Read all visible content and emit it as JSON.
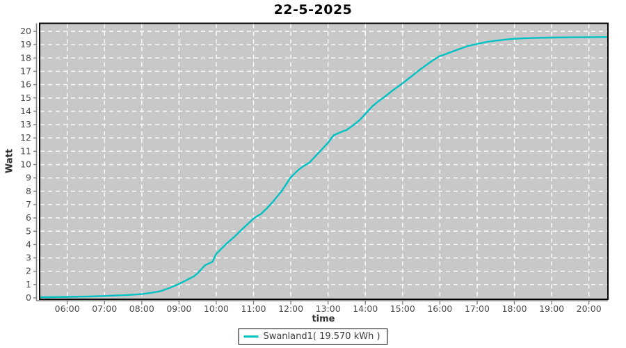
{
  "chart_data": {
    "type": "line",
    "title": "22-5-2025",
    "xlabel": "time",
    "ylabel": "Watt",
    "xlim": [
      5.26,
      20.51
    ],
    "ylim": [
      0,
      20
    ],
    "grid": true,
    "legend_position": "bottom-center",
    "x_ticks": [
      {
        "value": 6,
        "label": "06:00"
      },
      {
        "value": 7,
        "label": "07:00"
      },
      {
        "value": 8,
        "label": "08:00"
      },
      {
        "value": 9,
        "label": "09:00"
      },
      {
        "value": 10,
        "label": "10:00"
      },
      {
        "value": 11,
        "label": "11:00"
      },
      {
        "value": 12,
        "label": "12:00"
      },
      {
        "value": 13,
        "label": "13:00"
      },
      {
        "value": 14,
        "label": "14:00"
      },
      {
        "value": 15,
        "label": "15:00"
      },
      {
        "value": 16,
        "label": "16:00"
      },
      {
        "value": 17,
        "label": "17:00"
      },
      {
        "value": 18,
        "label": "18:00"
      },
      {
        "value": 19,
        "label": "19:00"
      },
      {
        "value": 20,
        "label": "20:00"
      }
    ],
    "y_ticks": [
      {
        "value": 0,
        "label": "0"
      },
      {
        "value": 1,
        "label": "1"
      },
      {
        "value": 2,
        "label": "2"
      },
      {
        "value": 3,
        "label": "3"
      },
      {
        "value": 4,
        "label": "4"
      },
      {
        "value": 5,
        "label": "5"
      },
      {
        "value": 6,
        "label": "6"
      },
      {
        "value": 7,
        "label": "7"
      },
      {
        "value": 8,
        "label": "8"
      },
      {
        "value": 9,
        "label": "9"
      },
      {
        "value": 10,
        "label": "10"
      },
      {
        "value": 11,
        "label": "11"
      },
      {
        "value": 12,
        "label": "12"
      },
      {
        "value": 13,
        "label": "13"
      },
      {
        "value": 14,
        "label": "14"
      },
      {
        "value": 15,
        "label": "15"
      },
      {
        "value": 16,
        "label": "16"
      },
      {
        "value": 17,
        "label": "17"
      },
      {
        "value": 18,
        "label": "18"
      },
      {
        "value": 19,
        "label": "19"
      },
      {
        "value": 20,
        "label": "20"
      }
    ],
    "colors": {
      "plot_background": "#c8c8c8",
      "gridline": "#ffffff",
      "plot_border": "#000000",
      "axis_line": "#808080",
      "tick_mark": "#808080",
      "tick_label": "#4a4a4a",
      "series_line": "#00c1c4"
    },
    "series": [
      {
        "name": "Swanland1( 19.570 kWh )",
        "total_kwh": "19.570",
        "color": "#00c1c4",
        "points": [
          [
            5.26,
            0.05
          ],
          [
            5.5,
            0.06
          ],
          [
            6.0,
            0.08
          ],
          [
            6.5,
            0.1
          ],
          [
            7.0,
            0.14
          ],
          [
            7.25,
            0.17
          ],
          [
            7.5,
            0.2
          ],
          [
            7.75,
            0.24
          ],
          [
            8.0,
            0.28
          ],
          [
            8.25,
            0.38
          ],
          [
            8.5,
            0.5
          ],
          [
            8.75,
            0.75
          ],
          [
            9.0,
            1.05
          ],
          [
            9.25,
            1.4
          ],
          [
            9.4,
            1.62
          ],
          [
            9.5,
            1.85
          ],
          [
            9.6,
            2.15
          ],
          [
            9.7,
            2.45
          ],
          [
            9.8,
            2.58
          ],
          [
            9.9,
            2.72
          ],
          [
            10.0,
            3.3
          ],
          [
            10.25,
            4.0
          ],
          [
            10.5,
            4.62
          ],
          [
            10.75,
            5.3
          ],
          [
            11.0,
            5.95
          ],
          [
            11.08,
            6.1
          ],
          [
            11.2,
            6.3
          ],
          [
            11.35,
            6.7
          ],
          [
            11.5,
            7.15
          ],
          [
            11.75,
            8.0
          ],
          [
            12.0,
            9.05
          ],
          [
            12.2,
            9.6
          ],
          [
            12.35,
            9.9
          ],
          [
            12.5,
            10.15
          ],
          [
            12.75,
            10.9
          ],
          [
            13.0,
            11.65
          ],
          [
            13.15,
            12.2
          ],
          [
            13.35,
            12.45
          ],
          [
            13.5,
            12.6
          ],
          [
            13.7,
            13.0
          ],
          [
            13.85,
            13.35
          ],
          [
            14.0,
            13.8
          ],
          [
            14.2,
            14.4
          ],
          [
            14.35,
            14.75
          ],
          [
            14.5,
            15.05
          ],
          [
            14.75,
            15.6
          ],
          [
            15.0,
            16.1
          ],
          [
            15.25,
            16.65
          ],
          [
            15.5,
            17.2
          ],
          [
            15.75,
            17.7
          ],
          [
            16.0,
            18.15
          ],
          [
            16.12,
            18.25
          ],
          [
            16.3,
            18.45
          ],
          [
            16.5,
            18.65
          ],
          [
            16.75,
            18.9
          ],
          [
            17.0,
            19.05
          ],
          [
            17.25,
            19.2
          ],
          [
            17.5,
            19.3
          ],
          [
            17.75,
            19.38
          ],
          [
            18.0,
            19.44
          ],
          [
            18.25,
            19.48
          ],
          [
            18.5,
            19.5
          ],
          [
            19.0,
            19.53
          ],
          [
            19.5,
            19.55
          ],
          [
            20.0,
            19.56
          ],
          [
            20.5,
            19.57
          ]
        ]
      }
    ]
  }
}
